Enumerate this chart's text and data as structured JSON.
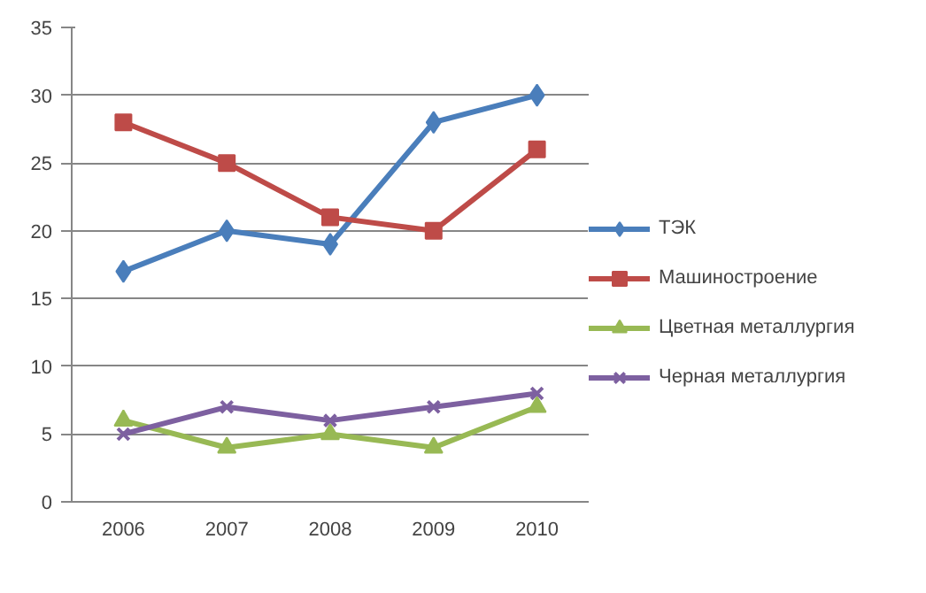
{
  "chart_data": {
    "type": "line",
    "categories": [
      "2006",
      "2007",
      "2008",
      "2009",
      "2010"
    ],
    "ylim": [
      0,
      35
    ],
    "yticks": [
      0,
      5,
      10,
      15,
      20,
      25,
      30,
      35
    ],
    "grid": "y",
    "legend": "right",
    "series": [
      {
        "name": "ТЭК",
        "color": "#4a7ebb",
        "marker": "diamond",
        "values": [
          17,
          20,
          19,
          28,
          30
        ]
      },
      {
        "name": "Машиностроение",
        "color": "#be4b48",
        "marker": "square",
        "values": [
          28,
          25,
          21,
          20,
          26
        ]
      },
      {
        "name": "Цветная металлургия",
        "color": "#98b954",
        "marker": "triangle",
        "values": [
          6,
          4,
          5,
          4,
          7
        ]
      },
      {
        "name": "Черная металлургия",
        "color": "#7d60a0",
        "marker": "cross",
        "values": [
          5,
          7,
          6,
          7,
          8
        ]
      }
    ]
  }
}
